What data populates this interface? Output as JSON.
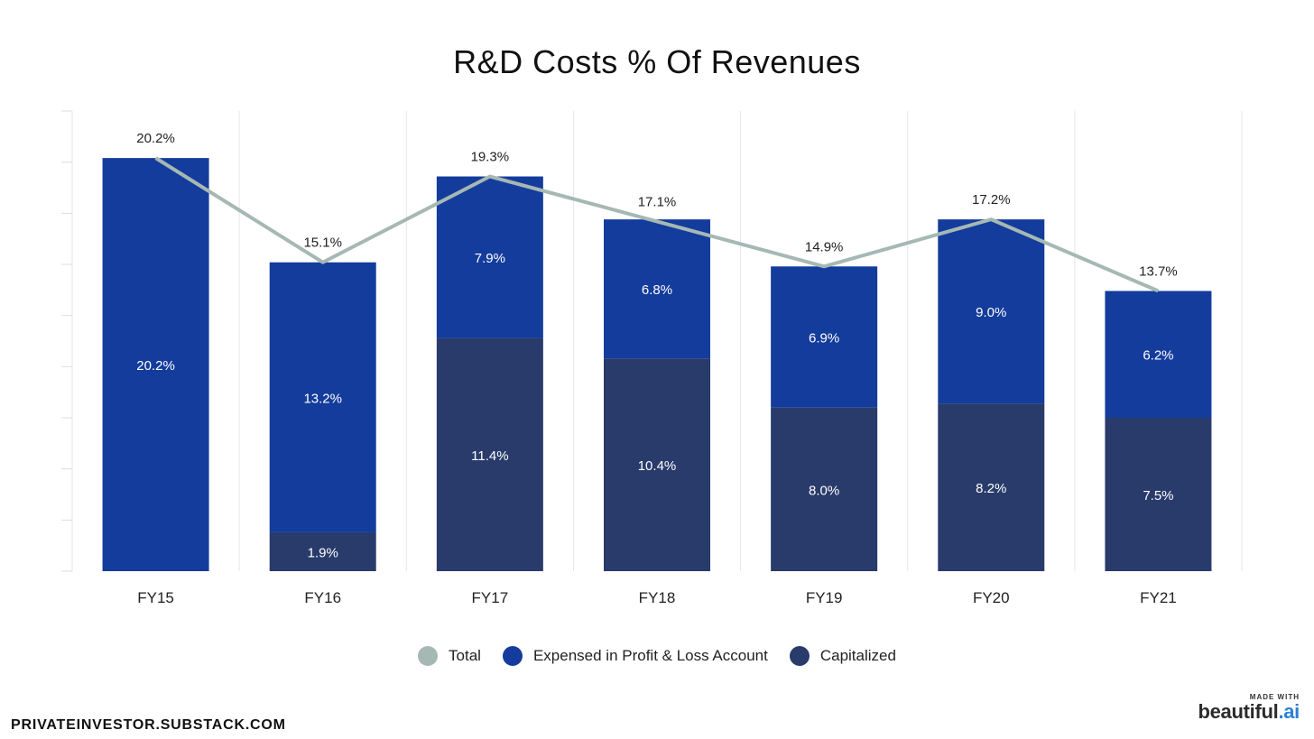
{
  "title": "R&D Costs % Of Revenues",
  "chart_data": {
    "type": "bar",
    "stacked": true,
    "categories": [
      "FY15",
      "FY16",
      "FY17",
      "FY18",
      "FY19",
      "FY20",
      "FY21"
    ],
    "series": [
      {
        "name": "Capitalized",
        "type": "bar",
        "values": [
          0,
          1.9,
          11.4,
          10.4,
          8.0,
          8.2,
          7.5
        ],
        "labels": [
          "",
          "1.9%",
          "11.4%",
          "10.4%",
          "8.0%",
          "8.2%",
          "7.5%"
        ],
        "color": "#293b6b"
      },
      {
        "name": "Expensed in Profit & Loss Account",
        "type": "bar",
        "values": [
          20.2,
          13.2,
          7.9,
          6.8,
          6.9,
          9.0,
          6.2
        ],
        "labels": [
          "20.2%",
          "13.2%",
          "7.9%",
          "6.8%",
          "6.9%",
          "9.0%",
          "6.2%"
        ],
        "color": "#143c9c"
      },
      {
        "name": "Total",
        "type": "line",
        "values": [
          20.2,
          15.1,
          19.3,
          17.1,
          14.9,
          17.2,
          13.7
        ],
        "labels": [
          "20.2%",
          "15.1%",
          "19.3%",
          "17.1%",
          "14.9%",
          "17.2%",
          "13.7%"
        ],
        "color": "#a6b8b4"
      }
    ],
    "ylim": [
      0,
      22.5
    ],
    "grid": true,
    "legend_position": "bottom"
  },
  "legend": [
    {
      "label": "Total",
      "color": "#a6b8b4"
    },
    {
      "label": "Expensed in Profit & Loss Account",
      "color": "#143c9c"
    },
    {
      "label": "Capitalized",
      "color": "#293b6b"
    }
  ],
  "footer": {
    "source": "PRIVATEINVESTOR.SUBSTACK.COM",
    "made_with": "MADE WITH",
    "brand_main": "beautiful",
    "brand_accent": ".ai"
  }
}
